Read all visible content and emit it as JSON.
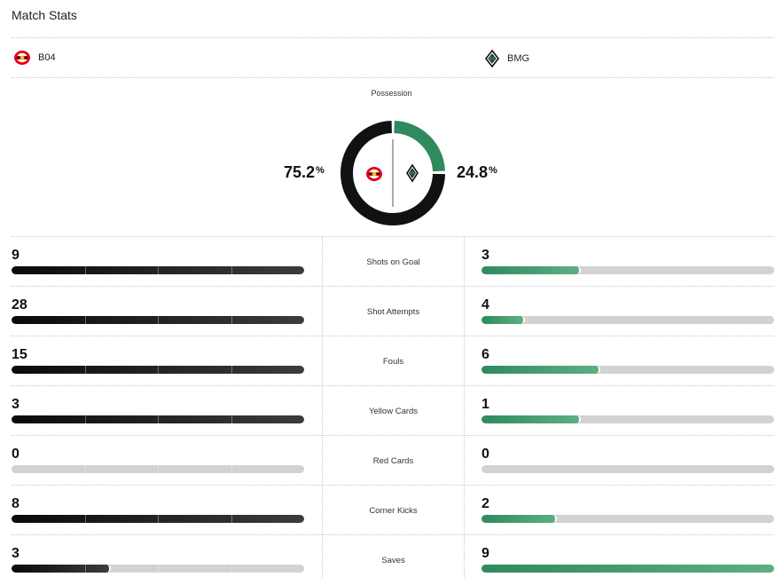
{
  "header": {
    "title": "Match Stats"
  },
  "teams": {
    "home": {
      "abbr": "B04",
      "icon": "bayer-leverkusen-crest-icon"
    },
    "away": {
      "abbr": "BMG",
      "icon": "gladbach-crest-icon"
    }
  },
  "possession": {
    "label": "Possession",
    "home_value": "75.2",
    "away_value": "24.8",
    "unit": "%",
    "home_fraction": 0.752,
    "away_fraction": 0.248
  },
  "colors": {
    "home": "#111111",
    "away": "#2f8a5d",
    "track": "#d2d2d2"
  },
  "stats": [
    {
      "label": "Shots on Goal",
      "home": "9",
      "away": "3",
      "home_fill": 1.0,
      "away_fill": 0.333
    },
    {
      "label": "Shot Attempts",
      "home": "28",
      "away": "4",
      "home_fill": 1.0,
      "away_fill": 0.143
    },
    {
      "label": "Fouls",
      "home": "15",
      "away": "6",
      "home_fill": 1.0,
      "away_fill": 0.4
    },
    {
      "label": "Yellow Cards",
      "home": "3",
      "away": "1",
      "home_fill": 1.0,
      "away_fill": 0.333
    },
    {
      "label": "Red Cards",
      "home": "0",
      "away": "0",
      "home_fill": 0,
      "away_fill": 0
    },
    {
      "label": "Corner Kicks",
      "home": "8",
      "away": "2",
      "home_fill": 1.0,
      "away_fill": 0.25
    },
    {
      "label": "Saves",
      "home": "3",
      "away": "9",
      "home_fill": 0.333,
      "away_fill": 1.0
    }
  ]
}
